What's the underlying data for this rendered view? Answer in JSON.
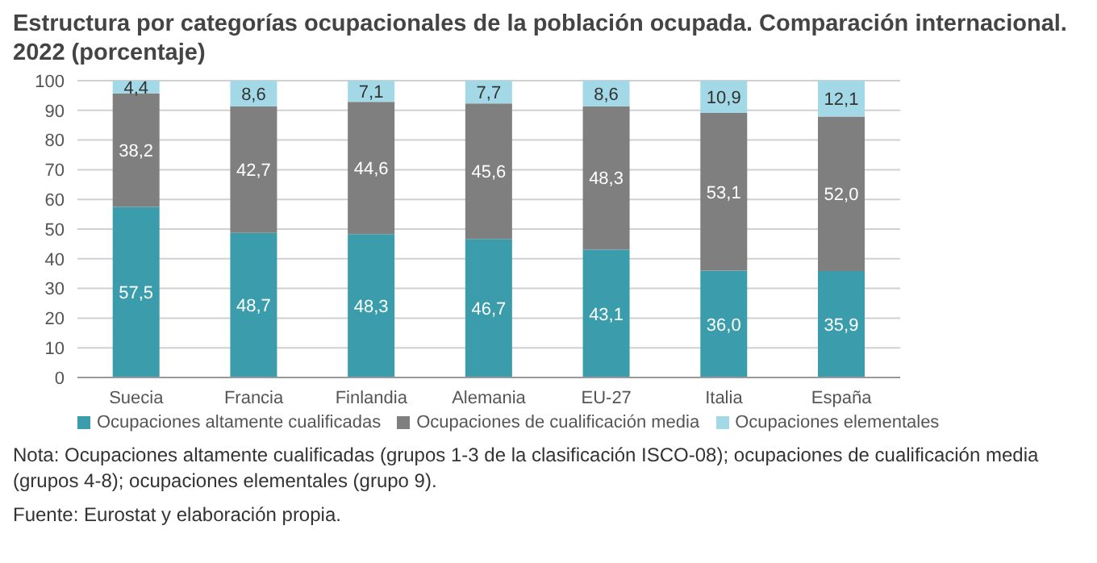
{
  "chart_data": {
    "type": "bar",
    "title": "Estructura por categorías ocupacionales de la población ocupada. Comparación internacional. 2022 (porcentaje)",
    "categories": [
      "Suecia",
      "Francia",
      "Finlandia",
      "Alemania",
      "EU-27",
      "Italia",
      "España"
    ],
    "stacked": true,
    "series": [
      {
        "name": "Ocupaciones altamente cualificadas",
        "color": "#3b9dab",
        "values": [
          57.5,
          48.7,
          48.3,
          46.7,
          43.1,
          36.0,
          35.9
        ],
        "value_labels": [
          "57,5",
          "48,7",
          "48,3",
          "46,7",
          "43,1",
          "36,0",
          "35,9"
        ]
      },
      {
        "name": "Ocupaciones de cualificación media",
        "color": "#7f7f7f",
        "values": [
          38.2,
          42.7,
          44.6,
          45.6,
          48.3,
          53.1,
          52.0
        ],
        "value_labels": [
          "38,2",
          "42,7",
          "44,6",
          "45,6",
          "48,3",
          "53,1",
          "52,0"
        ]
      },
      {
        "name": "Ocupaciones elementales",
        "color": "#a3d9e6",
        "values": [
          4.4,
          8.6,
          7.1,
          7.7,
          8.6,
          10.9,
          12.1
        ],
        "value_labels": [
          "4,4",
          "8,6",
          "7,1",
          "7,7",
          "8,6",
          "10,9",
          "12,1"
        ]
      }
    ],
    "ylim": [
      0,
      100
    ],
    "yticks": [
      0,
      10,
      20,
      30,
      40,
      50,
      60,
      70,
      80,
      90,
      100
    ],
    "grid": "y",
    "legend": "bottom",
    "annotations": [
      "Nota: Ocupaciones altamente cualificadas (grupos 1-3 de la clasificación ISCO-08); ocupaciones de cualificación media (grupos 4-8); ocupaciones elementales (grupo 9).",
      "Fuente: Eurostat y elaboración propia."
    ]
  }
}
